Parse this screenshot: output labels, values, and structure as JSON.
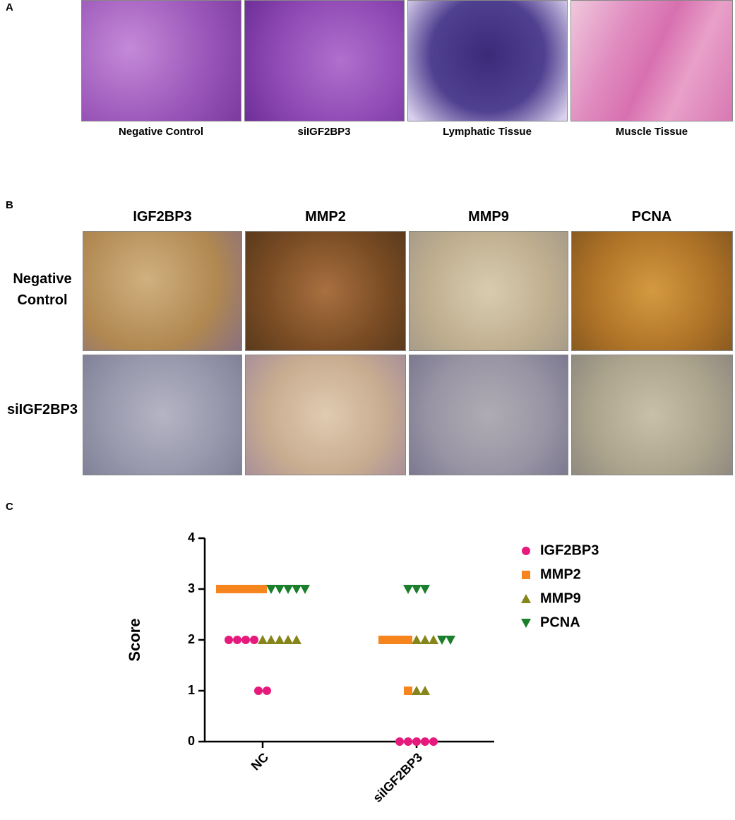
{
  "panel_a": {
    "label": "A",
    "captions": [
      "Negative Control",
      "siIGF2BP3",
      "Lymphatic Tissue",
      "Muscle Tissue"
    ]
  },
  "panel_b": {
    "label": "B",
    "columns": [
      "IGF2BP3",
      "MMP2",
      "MMP9",
      "PCNA"
    ],
    "rows": [
      "Negative Control",
      "siIGF2BP3"
    ]
  },
  "chart_data": {
    "type": "scatter",
    "panel_label": "C",
    "y_label": "Score",
    "categories": [
      "NC",
      "siIGF2BP3"
    ],
    "ylim": [
      0,
      4
    ],
    "yticks": [
      0,
      1,
      2,
      3,
      4
    ],
    "series": [
      {
        "name": "IGF2BP3",
        "color": "#e6197c",
        "marker": "circle",
        "values": [
          [
            2,
            2,
            2,
            2,
            1,
            1
          ],
          [
            0,
            0,
            0,
            0,
            0
          ]
        ]
      },
      {
        "name": "MMP2",
        "color": "#f7851e",
        "marker": "square",
        "values": [
          [
            3,
            3,
            3,
            3,
            3,
            3
          ],
          [
            2,
            2,
            2,
            2,
            1
          ]
        ]
      },
      {
        "name": "MMP9",
        "color": "#85851a",
        "marker": "triangle-up",
        "values": [
          [
            2,
            2,
            2,
            2,
            2
          ],
          [
            2,
            2,
            2,
            1,
            1
          ]
        ]
      },
      {
        "name": "PCNA",
        "color": "#1a7f2a",
        "marker": "triangle-down",
        "values": [
          [
            3,
            3,
            3,
            3,
            3
          ],
          [
            3,
            3,
            3,
            2,
            2
          ]
        ]
      }
    ]
  }
}
